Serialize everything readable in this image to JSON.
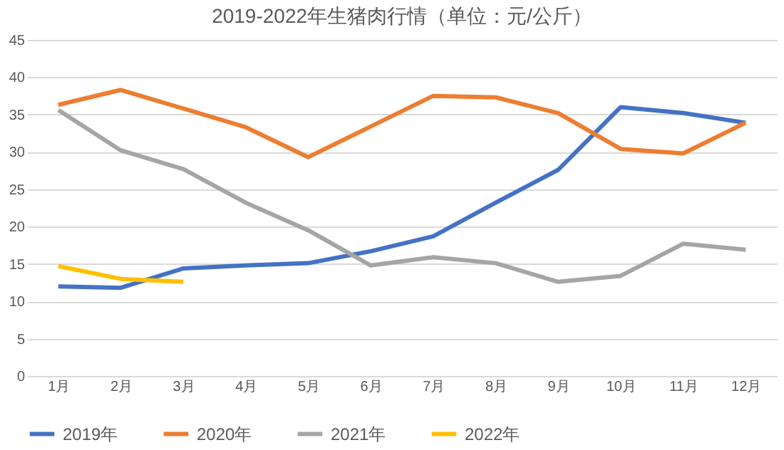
{
  "chart_data": {
    "type": "line",
    "title": "2019-2022年生猪肉行情（单位：元/公斤）",
    "categories": [
      "1月",
      "2月",
      "3月",
      "4月",
      "5月",
      "6月",
      "7月",
      "8月",
      "9月",
      "10月",
      "11月",
      "12月"
    ],
    "series": [
      {
        "name": "2019年",
        "color": "#4472c4",
        "values": [
          12.0,
          11.8,
          14.4,
          14.8,
          15.1,
          16.7,
          18.7,
          23.2,
          27.6,
          36.0,
          35.2,
          33.9
        ]
      },
      {
        "name": "2020年",
        "color": "#ed7d31",
        "values": [
          36.3,
          38.3,
          35.8,
          33.3,
          29.3,
          33.4,
          37.5,
          37.3,
          35.2,
          30.4,
          29.8,
          33.9
        ]
      },
      {
        "name": "2021年",
        "color": "#a5a5a5",
        "values": [
          35.6,
          30.2,
          27.7,
          23.2,
          19.5,
          14.8,
          15.9,
          15.1,
          12.6,
          13.4,
          17.7,
          16.9
        ]
      },
      {
        "name": "2022年",
        "color": "#ffc000",
        "values": [
          14.7,
          13.0,
          12.6,
          null,
          null,
          null,
          null,
          null,
          null,
          null,
          null,
          null
        ]
      }
    ],
    "ylim": [
      0,
      45
    ],
    "yticks": [
      0,
      5,
      10,
      15,
      20,
      25,
      30,
      35,
      40,
      45
    ],
    "grid": "y",
    "legend": "bottom",
    "marker": "none",
    "line_style": "solid"
  }
}
